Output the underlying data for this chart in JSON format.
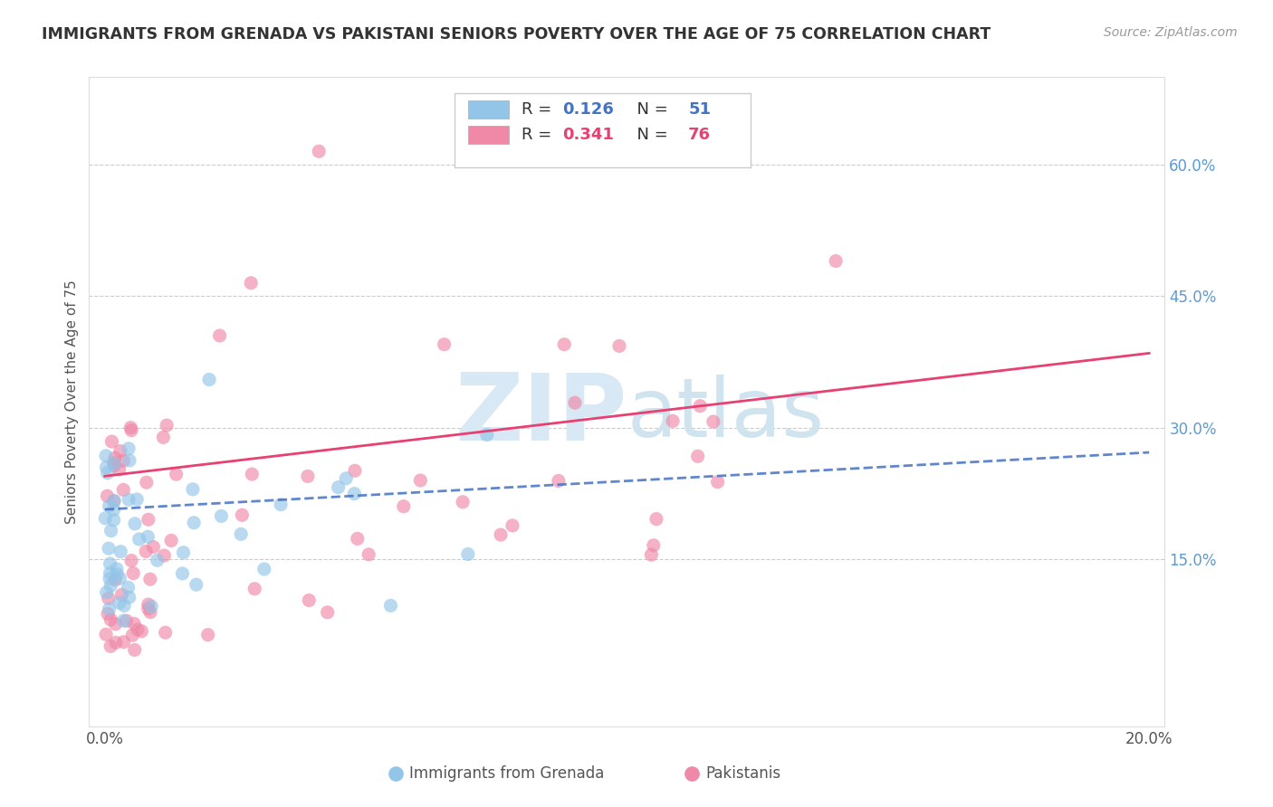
{
  "title": "IMMIGRANTS FROM GRENADA VS PAKISTANI SENIORS POVERTY OVER THE AGE OF 75 CORRELATION CHART",
  "source_text": "Source: ZipAtlas.com",
  "ylabel": "Seniors Poverty Over the Age of 75",
  "xlim": [
    0.0,
    0.2
  ],
  "ylim": [
    0.0,
    0.68
  ],
  "x_tick_labels": [
    "0.0%",
    "20.0%"
  ],
  "y_tick_labels_right": [
    "15.0%",
    "30.0%",
    "45.0%",
    "60.0%"
  ],
  "y_tick_vals_right": [
    0.15,
    0.3,
    0.45,
    0.6
  ],
  "legend_r1": "0.126",
  "legend_n1": "51",
  "legend_r2": "0.341",
  "legend_n2": "76",
  "color_blue": "#92C5E8",
  "color_pink": "#F088A8",
  "color_line_blue": "#4472C4",
  "color_line_pink": "#E84070",
  "background_color": "#FFFFFF",
  "grenada_line_x": [
    0.0,
    0.2
  ],
  "grenada_line_y": [
    0.207,
    0.272
  ],
  "pakistani_line_x": [
    0.0,
    0.2
  ],
  "pakistani_line_y": [
    0.245,
    0.385
  ]
}
